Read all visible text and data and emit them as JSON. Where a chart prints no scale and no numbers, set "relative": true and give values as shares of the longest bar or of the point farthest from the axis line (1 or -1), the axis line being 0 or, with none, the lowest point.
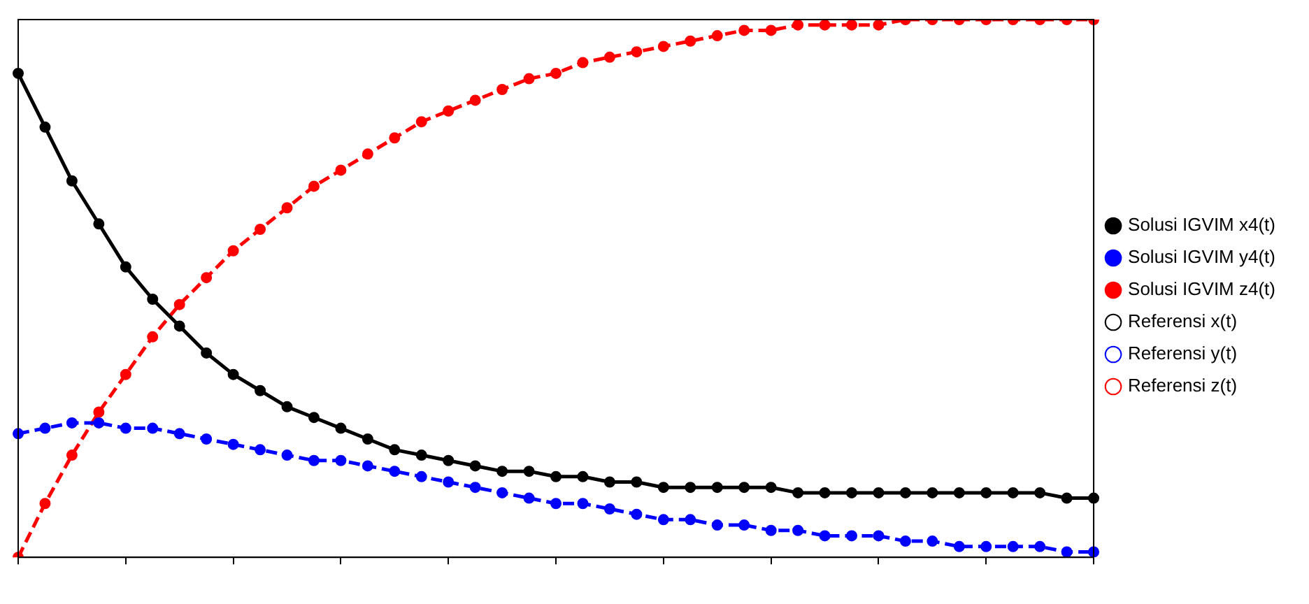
{
  "chart_data": {
    "type": "line",
    "relative": true,
    "legend": "right",
    "grid": false,
    "categories": [
      null,
      null,
      null,
      null,
      null,
      null,
      null,
      null,
      null,
      null,
      null,
      null,
      null,
      null,
      null,
      null,
      null,
      null,
      null,
      null,
      null,
      null,
      null,
      null,
      null,
      null,
      null,
      null,
      null,
      null,
      null,
      null,
      null,
      null,
      null,
      null,
      null,
      null,
      null,
      null,
      null
    ],
    "series": [
      {
        "name": "Referensi x(t)",
        "color": "#000000",
        "line_style": "solid",
        "marker": "circle",
        "values": [
          null,
          null,
          null,
          null,
          null,
          null,
          null,
          null,
          null,
          null,
          null,
          null,
          null,
          null,
          null,
          null,
          null,
          null,
          null,
          null,
          null,
          null,
          null,
          null,
          null,
          null,
          null,
          null,
          null,
          null,
          null,
          null,
          null,
          null,
          null,
          null,
          null,
          null,
          null,
          null,
          null
        ]
      },
      {
        "name": "Solusi IGVIM x4(t)",
        "color": "#000000",
        "line_style": "solid",
        "marker": "circle",
        "values": [
          0.9,
          0.8,
          0.7,
          0.62,
          0.54,
          0.48,
          0.43,
          0.38,
          0.34,
          0.31,
          0.28,
          0.26,
          0.24,
          0.22,
          0.2,
          0.19,
          0.18,
          0.17,
          0.16,
          0.16,
          0.15,
          0.15,
          0.14,
          0.14,
          0.13,
          0.13,
          0.13,
          0.13,
          0.13,
          0.12,
          0.12,
          0.12,
          0.12,
          0.12,
          0.12,
          0.12,
          0.12,
          0.12,
          0.12,
          0.11,
          0.11
        ]
      },
      {
        "name": "Referensi y(t)",
        "color": "#0000ff",
        "line_style": "dashed",
        "marker": "circle",
        "values": [
          null,
          null,
          null,
          null,
          null,
          null,
          null,
          null,
          null,
          null,
          null,
          null,
          null,
          null,
          null,
          null,
          null,
          null,
          null,
          null,
          null,
          null,
          null,
          null,
          null,
          null,
          null,
          null,
          null,
          null,
          null,
          null,
          null,
          null,
          null,
          null,
          null,
          null,
          null,
          null,
          null
        ]
      },
      {
        "name": "Solusi IGVIM y4(t)",
        "color": "#0000ff",
        "line_style": "dashed",
        "marker": "circle",
        "values": [
          0.23,
          0.24,
          0.25,
          0.25,
          0.24,
          0.24,
          0.23,
          0.22,
          0.21,
          0.2,
          0.19,
          0.18,
          0.18,
          0.17,
          0.16,
          0.15,
          0.14,
          0.13,
          0.12,
          0.11,
          0.1,
          0.1,
          0.09,
          0.08,
          0.07,
          0.07,
          0.06,
          0.06,
          0.05,
          0.05,
          0.04,
          0.04,
          0.04,
          0.03,
          0.03,
          0.02,
          0.02,
          0.02,
          0.02,
          0.01,
          0.01
        ]
      },
      {
        "name": "Referensi z(t)",
        "color": "#ff0000",
        "line_style": "dashed",
        "marker": "circle",
        "values": [
          null,
          null,
          null,
          null,
          null,
          null,
          null,
          null,
          null,
          null,
          null,
          null,
          null,
          null,
          null,
          null,
          null,
          null,
          null,
          null,
          null,
          null,
          null,
          null,
          null,
          null,
          null,
          null,
          null,
          null,
          null,
          null,
          null,
          null,
          null,
          null,
          null,
          null,
          null,
          null,
          null
        ]
      },
      {
        "name": "Solusi IGVIM z4(t)",
        "color": "#ff0000",
        "line_style": "dashed",
        "marker": "circle",
        "values": [
          0,
          0.1,
          0.19,
          0.27,
          0.34,
          0.41,
          0.47,
          0.52,
          0.57,
          0.61,
          0.65,
          0.69,
          0.72,
          0.75,
          0.78,
          0.81,
          0.83,
          0.85,
          0.87,
          0.89,
          0.9,
          0.92,
          0.93,
          0.94,
          0.95,
          0.96,
          0.97,
          0.98,
          0.98,
          0.99,
          0.99,
          0.99,
          0.99,
          1,
          1,
          1,
          1,
          1,
          1,
          1,
          1
        ]
      }
    ]
  }
}
